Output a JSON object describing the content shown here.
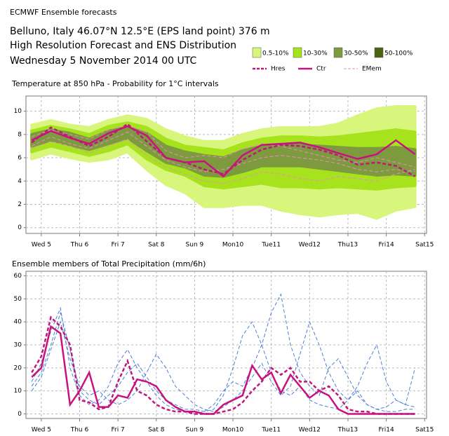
{
  "header": {
    "source": "ECMWF Ensemble forecasts",
    "location": "Belluno, Italy 46.07°N 12.5°E (EPS land point) 376 m",
    "product": "High Resolution Forecast and ENS Distribution",
    "date": "Wednesday  5 November 2014 00 UTC"
  },
  "chart_data": [
    {
      "type": "plume",
      "title": "Temperature at 850 hPa - Probability for 1°C intervals",
      "x": [
        -0.25,
        0.25,
        0.75,
        1.25,
        1.75,
        2.25,
        2.75,
        3.25,
        3.75,
        4.25,
        4.75,
        5.25,
        5.75,
        6.25,
        6.75,
        7.25,
        7.75,
        8.25,
        8.75,
        9.25,
        9.75
      ],
      "xlim": [
        -0.4,
        10.05
      ],
      "xticks": [
        {
          "value": 0,
          "label": "Wed 5"
        },
        {
          "value": 1,
          "label": "Thu 6"
        },
        {
          "value": 2,
          "label": "Fri 7"
        },
        {
          "value": 3,
          "label": "Sat 8"
        },
        {
          "value": 4,
          "label": "Sun 9",
          "color": "#d00000"
        },
        {
          "value": 5,
          "label": "Mon10"
        },
        {
          "value": 6,
          "label": "Tue11"
        },
        {
          "value": 7,
          "label": "Wed12"
        },
        {
          "value": 8,
          "label": "Thu13"
        },
        {
          "value": 9,
          "label": "Fri14"
        },
        {
          "value": 10,
          "label": "Sat15"
        }
      ],
      "ylim": [
        -0.5,
        11.3
      ],
      "yticks": [
        0,
        2,
        4,
        6,
        8,
        10
      ],
      "grid": true,
      "bands": [
        {
          "name": "0.5-10%",
          "color": "#d8f57c",
          "upper": [
            8.8,
            9.2,
            8.8,
            8.6,
            9.2,
            9.6,
            9.3,
            8.4,
            7.8,
            7.4,
            7.4,
            8.0,
            8.4,
            8.6,
            8.6,
            8.6,
            8.9,
            9.6,
            10.2,
            10.4,
            10.4
          ],
          "lower": [
            5.9,
            6.4,
            6.0,
            5.7,
            5.9,
            6.5,
            5.0,
            3.7,
            3.0,
            1.8,
            1.8,
            2.0,
            2.0,
            1.5,
            1.2,
            1.0,
            1.2,
            1.3,
            0.8,
            1.5,
            1.8
          ]
        },
        {
          "name": "10-30%",
          "color": "#a6e31c",
          "upper": [
            8.3,
            8.7,
            8.4,
            8.0,
            8.7,
            9.0,
            8.6,
            7.6,
            7.0,
            6.8,
            6.6,
            7.2,
            7.6,
            7.8,
            7.8,
            7.7,
            7.8,
            8.0,
            8.2,
            8.4,
            8.2
          ],
          "lower": [
            6.5,
            7.0,
            6.6,
            6.2,
            6.6,
            7.2,
            5.9,
            5.0,
            4.5,
            3.6,
            3.4,
            3.6,
            3.8,
            3.5,
            3.5,
            3.4,
            3.5,
            3.4,
            3.3,
            3.5,
            3.6
          ]
        },
        {
          "name": "30-50%",
          "color": "#7d9a3e",
          "upper": [
            8.0,
            8.4,
            8.1,
            7.6,
            8.3,
            8.6,
            8.1,
            7.0,
            6.5,
            6.2,
            6.0,
            6.6,
            7.0,
            7.1,
            7.1,
            7.0,
            6.9,
            6.8,
            6.8,
            6.9,
            6.7
          ],
          "lower": [
            7.0,
            7.5,
            7.1,
            6.7,
            7.2,
            7.7,
            6.6,
            5.6,
            5.2,
            4.5,
            4.4,
            4.8,
            5.3,
            5.3,
            5.3,
            5.1,
            4.9,
            4.7,
            4.5,
            4.6,
            4.5
          ]
        },
        {
          "name": "50-100%",
          "color": "#4b6412"
        }
      ],
      "members": {
        "name": "EMem",
        "color": "#e98cc2",
        "dash": true,
        "values": [
          [
            7.0,
            7.8,
            7.2,
            6.8,
            7.5,
            8.2,
            7.0,
            5.8,
            5.2,
            4.8,
            5.0,
            5.5,
            6.0,
            6.2,
            6.0,
            5.8,
            5.5,
            5.0,
            4.8,
            5.0,
            4.8
          ],
          [
            7.8,
            8.4,
            8.0,
            7.6,
            8.4,
            8.8,
            8.2,
            6.6,
            6.0,
            6.2,
            6.0,
            6.8,
            7.2,
            7.0,
            6.6,
            6.2,
            5.8,
            5.6,
            6.0,
            5.6,
            5.2
          ],
          [
            6.8,
            7.4,
            7.0,
            6.4,
            7.0,
            7.6,
            6.2,
            5.2,
            4.6,
            4.0,
            3.8,
            4.2,
            4.8,
            4.6,
            4.2,
            4.0,
            4.4,
            4.2,
            4.0,
            4.6,
            5.0
          ]
        ]
      },
      "series": [
        {
          "name": "Hres",
          "color": "#c0187a",
          "dash": true,
          "values": [
            7.3,
            8.6,
            7.8,
            7.0,
            7.8,
            8.9,
            7.4,
            6.0,
            5.6,
            5.0,
            4.6,
            5.8,
            6.7,
            7.1,
            7.0,
            6.7,
            6.2,
            5.4,
            5.6,
            5.3,
            4.4
          ]
        },
        {
          "name": "Ctr",
          "color": "#c8127f",
          "dash": false,
          "values": [
            7.5,
            8.3,
            7.7,
            7.2,
            8.1,
            8.7,
            7.9,
            6.0,
            5.6,
            5.7,
            4.4,
            6.2,
            7.1,
            7.2,
            7.3,
            6.9,
            6.4,
            5.9,
            6.3,
            7.5,
            6.3
          ]
        }
      ]
    },
    {
      "type": "line",
      "title": "Ensemble members of Total Precipitation (mm/6h)",
      "x": [
        -0.25,
        0,
        0.25,
        0.5,
        0.75,
        1,
        1.25,
        1.5,
        1.75,
        2,
        2.25,
        2.5,
        2.75,
        3,
        3.25,
        3.5,
        3.75,
        4,
        4.25,
        4.5,
        4.75,
        5,
        5.25,
        5.5,
        5.75,
        6,
        6.25,
        6.5,
        6.75,
        7,
        7.25,
        7.5,
        7.75,
        8,
        8.25,
        8.5,
        8.75,
        9,
        9.25,
        9.5,
        9.75
      ],
      "xlim": [
        -0.4,
        10.05
      ],
      "xticks": [
        {
          "value": 0,
          "label": "Wed 5"
        },
        {
          "value": 1,
          "label": "Thu 6"
        },
        {
          "value": 2,
          "label": "Fri 7"
        },
        {
          "value": 3,
          "label": "Sat 8"
        },
        {
          "value": 4,
          "label": "Sun 9",
          "color": "#d00000"
        },
        {
          "value": 5,
          "label": "Mon10"
        },
        {
          "value": 6,
          "label": "Tue11"
        },
        {
          "value": 7,
          "label": "Wed12"
        },
        {
          "value": 8,
          "label": "Thu13"
        },
        {
          "value": 9,
          "label": "Fri14"
        },
        {
          "value": 10,
          "label": "Sat15"
        }
      ],
      "ylim": [
        -2,
        62
      ],
      "yticks": [
        0,
        10,
        20,
        30,
        40,
        50,
        60
      ],
      "grid": true,
      "members": {
        "color": "#4a7fd6",
        "dash": true,
        "values": [
          [
            12,
            18,
            30,
            44,
            28,
            10,
            6,
            4,
            8,
            12,
            18,
            22,
            16,
            10,
            6,
            4,
            2,
            2,
            1,
            2,
            8,
            20,
            34,
            40,
            30,
            18,
            10,
            8,
            12,
            6,
            4,
            3,
            2,
            6,
            10,
            4,
            2,
            1,
            1,
            2,
            2
          ],
          [
            14,
            22,
            36,
            46,
            20,
            8,
            4,
            6,
            12,
            22,
            28,
            20,
            14,
            8,
            4,
            2,
            1,
            0,
            1,
            4,
            10,
            14,
            12,
            20,
            30,
            44,
            52,
            30,
            18,
            12,
            8,
            20,
            24,
            16,
            8,
            4,
            2,
            3,
            6,
            4,
            3
          ],
          [
            10,
            16,
            28,
            40,
            24,
            12,
            8,
            10,
            6,
            4,
            6,
            10,
            18,
            26,
            20,
            12,
            8,
            4,
            2,
            1,
            3,
            6,
            10,
            16,
            22,
            14,
            8,
            12,
            26,
            40,
            30,
            18,
            10,
            6,
            12,
            22,
            30,
            14,
            6,
            4,
            20
          ]
        ]
      },
      "series": [
        {
          "color": "#c0187a",
          "dash": true,
          "values": [
            18,
            25,
            42,
            38,
            30,
            6,
            5,
            2,
            3,
            14,
            23,
            10,
            8,
            4,
            2,
            1,
            1,
            0,
            0,
            0,
            1,
            2,
            5,
            10,
            14,
            20,
            17,
            20,
            14,
            14,
            10,
            12,
            8,
            2,
            1,
            1,
            0,
            0,
            0,
            0,
            0
          ]
        },
        {
          "color": "#c8127f",
          "dash": false,
          "values": [
            16,
            20,
            38,
            35,
            4,
            10,
            18,
            3,
            3,
            8,
            7,
            15,
            14,
            12,
            6,
            3,
            1,
            1,
            0,
            0,
            4,
            6,
            8,
            21,
            15,
            18,
            9,
            17,
            12,
            7,
            10,
            8,
            2,
            0,
            0,
            0,
            0,
            0,
            0,
            0,
            0
          ]
        }
      ]
    }
  ]
}
